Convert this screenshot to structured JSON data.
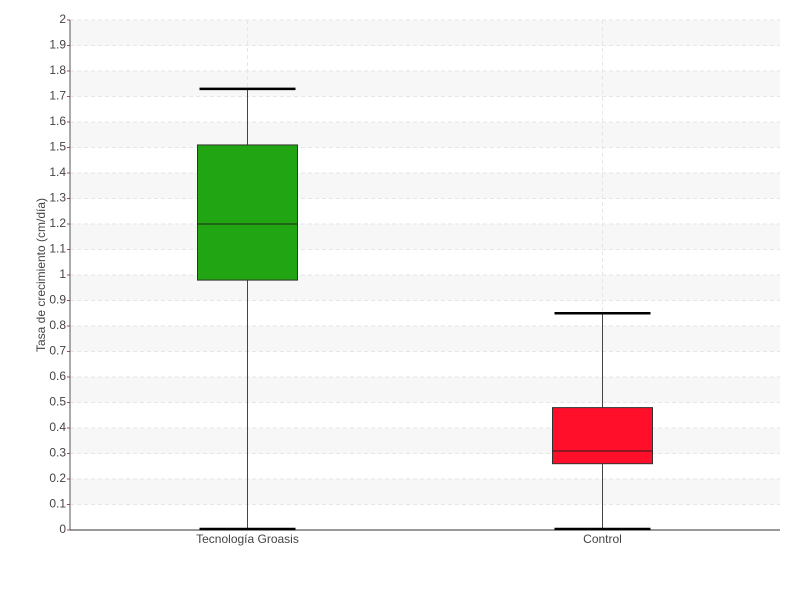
{
  "chart_data": {
    "type": "box",
    "y_label": "Tasa de crecimiento (cm/día)",
    "categories": [
      "Tecnología Groasis",
      "Control"
    ],
    "boxes": [
      {
        "min": 0,
        "q1": 0.98,
        "median": 1.2,
        "q3": 1.51,
        "max": 1.73,
        "color": "#22a512"
      },
      {
        "min": 0,
        "q1": 0.26,
        "median": 0.31,
        "q3": 0.48,
        "max": 0.85,
        "color": "#ff0f2a"
      }
    ],
    "ylim": [
      0,
      2
    ],
    "yticks": [
      0,
      0.1,
      0.2,
      0.3,
      0.4,
      0.5,
      0.6,
      0.7,
      0.8,
      0.9,
      1,
      1.1,
      1.2,
      1.3,
      1.4,
      1.5,
      1.6,
      1.7,
      1.8,
      1.9,
      2
    ],
    "grid": true
  }
}
